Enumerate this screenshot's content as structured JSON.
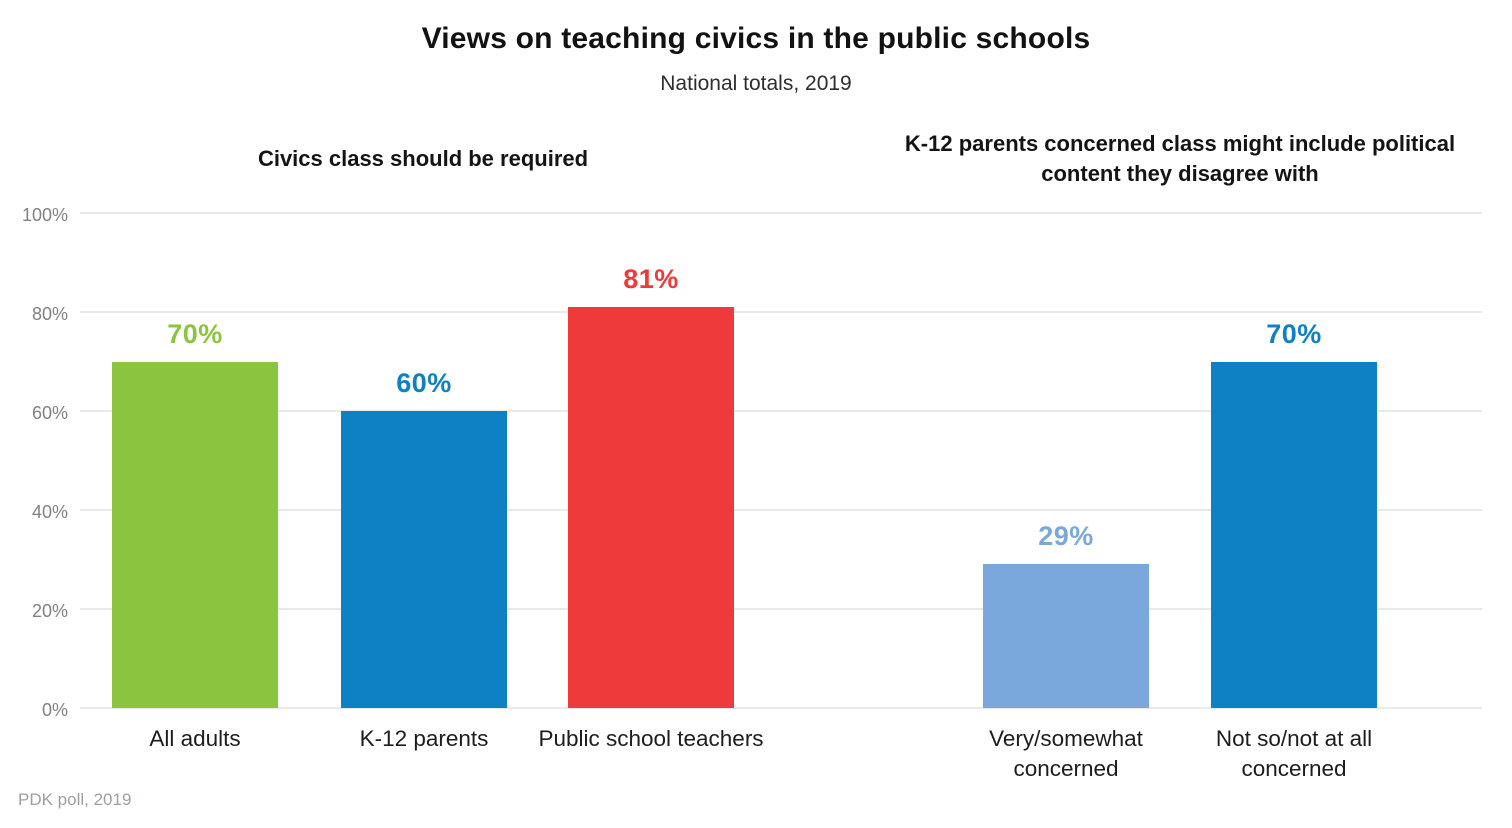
{
  "title": "Views on teaching civics in the public schools",
  "subtitle": "National totals, 2019",
  "source": "PDK poll, 2019",
  "colors": {
    "green": "#8bc540",
    "blue": "#0e80c4",
    "red": "#ee3a3b",
    "light_blue": "#7aa8dc",
    "gridline": "#e9e9e9",
    "tick_text": "#818181"
  },
  "chart_data": {
    "type": "bar",
    "title": "Views on teaching civics in the public schools",
    "subtitle": "National totals, 2019",
    "ylabel": "",
    "ylim": [
      0,
      100
    ],
    "yticks": [
      {
        "value": 0,
        "label": "0%"
      },
      {
        "value": 20,
        "label": "20%"
      },
      {
        "value": 40,
        "label": "40%"
      },
      {
        "value": 60,
        "label": "60%"
      },
      {
        "value": 80,
        "label": "80%"
      },
      {
        "value": 100,
        "label": "100%"
      }
    ],
    "grid": true,
    "legend": false,
    "groups": [
      {
        "title": "Civics class should be required",
        "bars": [
          {
            "label": "All adults",
            "value": 70,
            "value_label": "70%",
            "color": "#8bc540"
          },
          {
            "label": "K-12 parents",
            "value": 60,
            "value_label": "60%",
            "color": "#0e80c4"
          },
          {
            "label": "Public school teachers",
            "value": 81,
            "value_label": "81%",
            "color": "#ee3a3b"
          }
        ]
      },
      {
        "title": "K-12 parents concerned class might include political content they disagree with",
        "bars": [
          {
            "label": "Very/somewhat concerned",
            "value": 29,
            "value_label": "29%",
            "color": "#7aa8dc"
          },
          {
            "label": "Not so/not at all concerned",
            "value": 70,
            "value_label": "70%",
            "color": "#0e80c4"
          }
        ]
      }
    ],
    "source": "PDK poll, 2019"
  }
}
